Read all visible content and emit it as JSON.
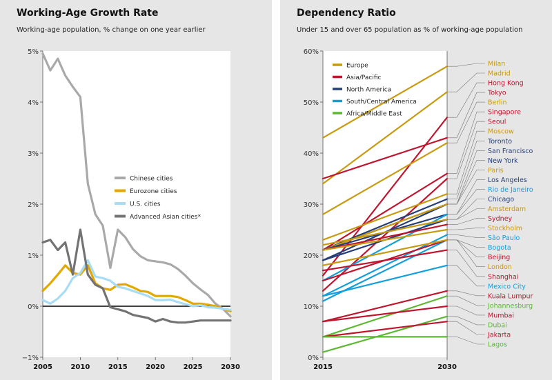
{
  "left": {
    "title": "Working-Age Growth Rate",
    "subtitle": "Working-age population, % change on one year earlier"
  },
  "right": {
    "title": "Dependency Ratio",
    "subtitle": "Under 15 and over 65 population as % of working-age population"
  },
  "chart_data": [
    {
      "type": "line",
      "title": "Working-Age Growth Rate",
      "subtitle": "Working-age population, % change on one year earlier",
      "xlim": [
        2005,
        2030
      ],
      "ylim": [
        -1,
        5
      ],
      "x_ticks": [
        "2005",
        "2010",
        "2015",
        "2020",
        "2025",
        "2030"
      ],
      "y_ticks": [
        "5%",
        "4%",
        "3%",
        "2%",
        "1%",
        "0%",
        "−1%"
      ],
      "grid": false,
      "legend_position": "center-right",
      "x": [
        2005,
        2006,
        2007,
        2008,
        2009,
        2010,
        2011,
        2012,
        2013,
        2014,
        2015,
        2016,
        2017,
        2018,
        2019,
        2020,
        2021,
        2022,
        2023,
        2024,
        2025,
        2026,
        2027,
        2028,
        2029,
        2030
      ],
      "series": [
        {
          "name": "Chinese cities",
          "color": "#a9a9a9",
          "values": [
            4.95,
            4.62,
            4.85,
            4.52,
            4.3,
            4.1,
            2.4,
            1.8,
            1.58,
            0.75,
            1.5,
            1.35,
            1.12,
            0.98,
            0.9,
            0.88,
            0.86,
            0.82,
            0.73,
            0.6,
            0.45,
            0.33,
            0.22,
            0.05,
            -0.05,
            -0.2
          ]
        },
        {
          "name": "Eurozone cities",
          "color": "#e0a800",
          "values": [
            0.3,
            0.45,
            0.62,
            0.8,
            0.65,
            0.62,
            0.8,
            0.45,
            0.35,
            0.32,
            0.42,
            0.43,
            0.37,
            0.3,
            0.28,
            0.2,
            0.2,
            0.2,
            0.18,
            0.12,
            0.05,
            0.05,
            0.03,
            0.0,
            -0.05,
            -0.1
          ]
        },
        {
          "name": "U.S. cities",
          "color": "#a8dcf5",
          "values": [
            0.12,
            0.05,
            0.15,
            0.3,
            0.55,
            0.65,
            0.9,
            0.58,
            0.55,
            0.5,
            0.38,
            0.35,
            0.3,
            0.25,
            0.2,
            0.12,
            0.12,
            0.13,
            0.08,
            0.04,
            0.0,
            0.02,
            -0.02,
            -0.03,
            -0.05,
            -0.07
          ]
        },
        {
          "name": "Advanced Asian cities*",
          "color": "#737373",
          "values": [
            1.25,
            1.3,
            1.1,
            1.25,
            0.62,
            1.5,
            0.62,
            0.42,
            0.35,
            -0.02,
            -0.06,
            -0.1,
            -0.17,
            -0.2,
            -0.23,
            -0.3,
            -0.25,
            -0.3,
            -0.32,
            -0.32,
            -0.3,
            -0.28,
            -0.28,
            -0.28,
            -0.28,
            -0.28
          ]
        }
      ]
    },
    {
      "type": "line",
      "title": "Dependency Ratio",
      "subtitle": "Under 15 and over 65 population as % of working-age population",
      "xlim": [
        2015,
        2030
      ],
      "ylim": [
        0,
        60
      ],
      "x_ticks": [
        "2015",
        "2030"
      ],
      "y_ticks": [
        "60%",
        "50%",
        "40%",
        "30%",
        "20%",
        "10%",
        "0%"
      ],
      "grid": false,
      "legend_position": "top-left",
      "legend": [
        {
          "name": "Europe",
          "color": "#c79a10"
        },
        {
          "name": "Asia/Pacific",
          "color": "#c0152f"
        },
        {
          "name": "North America",
          "color": "#263f78"
        },
        {
          "name": "South/Central America",
          "color": "#139fdb"
        },
        {
          "name": "Africa/Middle East",
          "color": "#5cb833"
        }
      ],
      "series": [
        {
          "name": "Milan",
          "color": "#c79a10",
          "values": [
            43,
            57
          ]
        },
        {
          "name": "Madrid",
          "color": "#c79a10",
          "values": [
            34,
            52
          ]
        },
        {
          "name": "Hong Kong",
          "color": "#c0152f",
          "values": [
            16,
            47
          ]
        },
        {
          "name": "Tokyo",
          "color": "#c0152f",
          "values": [
            35,
            43
          ]
        },
        {
          "name": "Berlin",
          "color": "#c79a10",
          "values": [
            28,
            42
          ]
        },
        {
          "name": "Singapore",
          "color": "#c0152f",
          "values": [
            21,
            36
          ]
        },
        {
          "name": "Seoul",
          "color": "#c0152f",
          "values": [
            13,
            35
          ]
        },
        {
          "name": "Moscow",
          "color": "#c79a10",
          "values": [
            23,
            32
          ]
        },
        {
          "name": "Toronto",
          "color": "#263f78",
          "values": [
            21,
            31
          ]
        },
        {
          "name": "San Francisco",
          "color": "#263f78",
          "values": [
            19,
            30
          ]
        },
        {
          "name": "New York",
          "color": "#263f78",
          "values": [
            21,
            30
          ]
        },
        {
          "name": "Paris",
          "color": "#c79a10",
          "values": [
            21,
            30
          ]
        },
        {
          "name": "Los Angeles",
          "color": "#263f78",
          "values": [
            21,
            28
          ]
        },
        {
          "name": "Rio de Janeiro",
          "color": "#139fdb",
          "values": [
            15,
            28
          ]
        },
        {
          "name": "Chicago",
          "color": "#263f78",
          "values": [
            19,
            27
          ]
        },
        {
          "name": "Amsterdam",
          "color": "#c79a10",
          "values": [
            22,
            27
          ]
        },
        {
          "name": "Sydney",
          "color": "#c0152f",
          "values": [
            21,
            26
          ]
        },
        {
          "name": "Stockholm",
          "color": "#c79a10",
          "values": [
            21,
            25
          ]
        },
        {
          "name": "São Paulo",
          "color": "#139fdb",
          "values": [
            12,
            24
          ]
        },
        {
          "name": "Bogota",
          "color": "#139fdb",
          "values": [
            11,
            23
          ]
        },
        {
          "name": "Beijing",
          "color": "#c0152f",
          "values": [
            15,
            23
          ]
        },
        {
          "name": "London",
          "color": "#c79a10",
          "values": [
            18,
            23
          ]
        },
        {
          "name": "Shanghai",
          "color": "#c0152f",
          "values": [
            17,
            21
          ]
        },
        {
          "name": "Mexico City",
          "color": "#139fdb",
          "values": [
            12,
            18
          ]
        },
        {
          "name": "Kuala Lumpur",
          "color": "#c0152f",
          "values": [
            7,
            13
          ]
        },
        {
          "name": "Johannesburg",
          "color": "#5cb833",
          "values": [
            4,
            12
          ]
        },
        {
          "name": "Mumbai",
          "color": "#c0152f",
          "values": [
            7,
            10
          ]
        },
        {
          "name": "Dubai",
          "color": "#5cb833",
          "values": [
            1,
            8
          ]
        },
        {
          "name": "Jakarta",
          "color": "#c0152f",
          "values": [
            4,
            7
          ]
        },
        {
          "name": "Lagos",
          "color": "#5cb833",
          "values": [
            4,
            4
          ]
        }
      ]
    }
  ]
}
